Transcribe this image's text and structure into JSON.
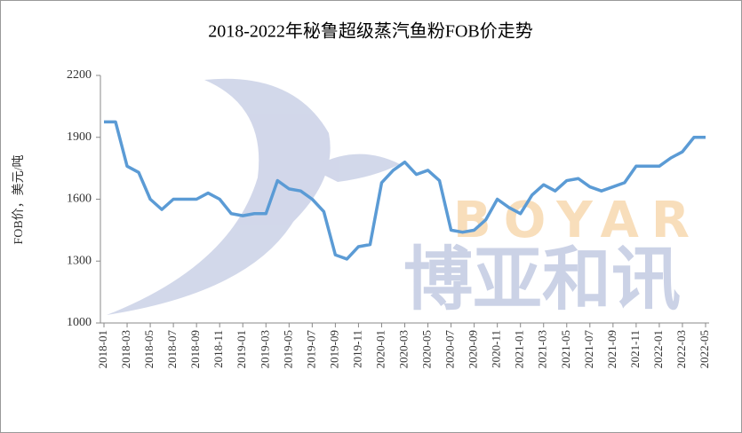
{
  "chart_data": {
    "type": "line",
    "title": "2018-2022年秘鲁超级蒸汽鱼粉FOB价走势",
    "y_label": "FOB价，美元/吨",
    "watermark": [
      "BOYAR",
      "博亚和讯"
    ],
    "x": [
      "2018-01",
      null,
      "2018-03",
      null,
      "2018-05",
      null,
      "2018-07",
      null,
      "2018-09",
      null,
      "2018-11",
      null,
      "2019-01",
      null,
      "2019-03",
      null,
      "2019-05",
      null,
      "2019-07",
      null,
      "2019-09",
      null,
      "2019-11",
      null,
      "2020-01",
      null,
      "2020-03",
      null,
      "2020-05",
      null,
      "2020-07",
      null,
      "2020-09",
      null,
      "2020-11",
      null,
      "2021-01",
      null,
      "2021-03",
      null,
      "2021-05",
      null,
      "2021-07",
      null,
      "2021-09",
      null,
      "2021-11",
      null,
      "2022-01",
      null,
      "2022-03",
      null,
      "2022-05"
    ],
    "series": [
      {
        "name": "FOB价",
        "color": "#5b9bd5",
        "values": [
          1975,
          1975,
          1760,
          1730,
          1600,
          1550,
          1600,
          1600,
          1600,
          1630,
          1600,
          1530,
          1520,
          1530,
          1530,
          1690,
          1650,
          1640,
          1600,
          1540,
          1330,
          1310,
          1370,
          1380,
          1680,
          1740,
          1780,
          1720,
          1740,
          1690,
          1450,
          1440,
          1450,
          1500,
          1600,
          1560,
          1530,
          1620,
          1670,
          1640,
          1690,
          1700,
          1660,
          1640,
          1660,
          1680,
          1760,
          1760,
          1760,
          1800,
          1830,
          1900,
          1900
        ]
      }
    ],
    "ylim": [
      1000,
      2200
    ],
    "yticks": [
      1000,
      1300,
      1600,
      1900,
      2200
    ],
    "grid": false
  }
}
